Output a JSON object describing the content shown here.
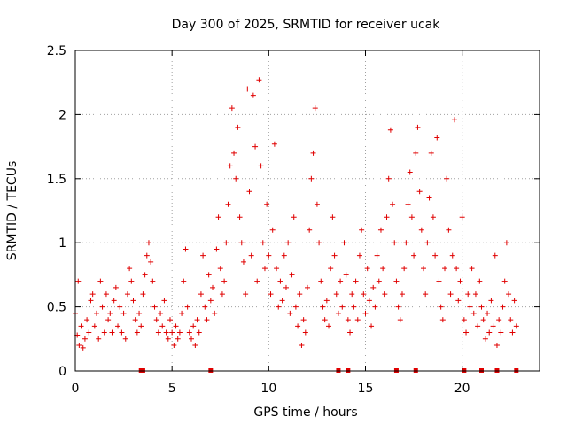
{
  "chart_data": {
    "type": "scatter",
    "title": "Day 300 of 2025, SRMTID for receiver ucak",
    "xlabel": "GPS time / hours",
    "ylabel": "SRMTID / TECUs",
    "xlim": [
      0,
      24
    ],
    "ylim": [
      0,
      2.5
    ],
    "xticks": [
      0,
      5,
      10,
      15,
      20
    ],
    "yticks": [
      0,
      0.5,
      1,
      1.5,
      2,
      2.5
    ],
    "xtick_labels": [
      "0",
      "5",
      "10",
      "15",
      "20"
    ],
    "ytick_labels": [
      "0",
      "0.5",
      "1",
      "1.5",
      "2",
      "2.5"
    ],
    "grid": true,
    "marker": "+",
    "color": "#e00000",
    "series": [
      {
        "name": "SRMTID",
        "points": [
          [
            0.0,
            0.45
          ],
          [
            0.1,
            0.28
          ],
          [
            0.15,
            0.7
          ],
          [
            0.2,
            0.2
          ],
          [
            0.3,
            0.35
          ],
          [
            0.4,
            0.18
          ],
          [
            0.5,
            0.25
          ],
          [
            0.6,
            0.4
          ],
          [
            0.7,
            0.3
          ],
          [
            0.8,
            0.55
          ],
          [
            0.9,
            0.6
          ],
          [
            1.0,
            0.35
          ],
          [
            1.1,
            0.45
          ],
          [
            1.2,
            0.25
          ],
          [
            1.3,
            0.7
          ],
          [
            1.4,
            0.5
          ],
          [
            1.5,
            0.3
          ],
          [
            1.6,
            0.6
          ],
          [
            1.7,
            0.4
          ],
          [
            1.8,
            0.45
          ],
          [
            1.9,
            0.3
          ],
          [
            2.0,
            0.55
          ],
          [
            2.1,
            0.65
          ],
          [
            2.2,
            0.35
          ],
          [
            2.3,
            0.5
          ],
          [
            2.4,
            0.3
          ],
          [
            2.5,
            0.45
          ],
          [
            2.6,
            0.25
          ],
          [
            2.7,
            0.6
          ],
          [
            2.8,
            0.8
          ],
          [
            2.9,
            0.7
          ],
          [
            3.0,
            0.55
          ],
          [
            3.1,
            0.4
          ],
          [
            3.2,
            0.3
          ],
          [
            3.3,
            0.45
          ],
          [
            3.4,
            0.35
          ],
          [
            3.5,
            0.6
          ],
          [
            3.6,
            0.75
          ],
          [
            3.7,
            0.9
          ],
          [
            3.8,
            1.0
          ],
          [
            3.9,
            0.85
          ],
          [
            4.0,
            0.7
          ],
          [
            4.1,
            0.5
          ],
          [
            4.2,
            0.4
          ],
          [
            4.3,
            0.3
          ],
          [
            4.4,
            0.45
          ],
          [
            4.5,
            0.35
          ],
          [
            4.6,
            0.55
          ],
          [
            4.7,
            0.3
          ],
          [
            4.8,
            0.25
          ],
          [
            4.9,
            0.4
          ],
          [
            5.0,
            0.3
          ],
          [
            5.1,
            0.2
          ],
          [
            5.2,
            0.35
          ],
          [
            5.3,
            0.25
          ],
          [
            5.4,
            0.3
          ],
          [
            5.5,
            0.45
          ],
          [
            5.6,
            0.7
          ],
          [
            5.7,
            0.95
          ],
          [
            5.8,
            0.5
          ],
          [
            5.9,
            0.3
          ],
          [
            6.0,
            0.25
          ],
          [
            6.1,
            0.35
          ],
          [
            6.2,
            0.2
          ],
          [
            6.3,
            0.4
          ],
          [
            6.4,
            0.3
          ],
          [
            6.5,
            0.6
          ],
          [
            6.6,
            0.9
          ],
          [
            6.7,
            0.5
          ],
          [
            6.8,
            0.4
          ],
          [
            6.9,
            0.75
          ],
          [
            7.0,
            0.55
          ],
          [
            7.1,
            0.65
          ],
          [
            7.2,
            0.45
          ],
          [
            7.3,
            0.95
          ],
          [
            7.4,
            1.2
          ],
          [
            7.5,
            0.8
          ],
          [
            7.6,
            0.6
          ],
          [
            7.7,
            0.7
          ],
          [
            7.8,
            1.0
          ],
          [
            7.9,
            1.3
          ],
          [
            8.0,
            1.6
          ],
          [
            8.1,
            2.05
          ],
          [
            8.2,
            1.7
          ],
          [
            8.3,
            1.5
          ],
          [
            8.4,
            1.9
          ],
          [
            8.5,
            1.2
          ],
          [
            8.6,
            1.0
          ],
          [
            8.7,
            0.85
          ],
          [
            8.8,
            0.6
          ],
          [
            8.9,
            2.2
          ],
          [
            9.0,
            1.4
          ],
          [
            9.1,
            0.9
          ],
          [
            9.2,
            2.15
          ],
          [
            9.3,
            1.75
          ],
          [
            9.4,
            0.7
          ],
          [
            9.5,
            2.27
          ],
          [
            9.6,
            1.6
          ],
          [
            9.7,
            1.0
          ],
          [
            9.8,
            0.8
          ],
          [
            9.9,
            1.3
          ],
          [
            10.0,
            0.9
          ],
          [
            10.1,
            0.6
          ],
          [
            10.2,
            1.1
          ],
          [
            10.3,
            1.77
          ],
          [
            10.4,
            0.8
          ],
          [
            10.5,
            0.5
          ],
          [
            10.6,
            0.7
          ],
          [
            10.7,
            0.55
          ],
          [
            10.8,
            0.9
          ],
          [
            10.9,
            0.65
          ],
          [
            11.0,
            1.0
          ],
          [
            11.1,
            0.45
          ],
          [
            11.2,
            0.75
          ],
          [
            11.3,
            1.2
          ],
          [
            11.4,
            0.5
          ],
          [
            11.5,
            0.35
          ],
          [
            11.6,
            0.6
          ],
          [
            11.7,
            0.2
          ],
          [
            11.8,
            0.4
          ],
          [
            11.9,
            0.3
          ],
          [
            12.0,
            0.65
          ],
          [
            12.1,
            1.1
          ],
          [
            12.2,
            1.5
          ],
          [
            12.3,
            1.7
          ],
          [
            12.4,
            2.05
          ],
          [
            12.5,
            1.3
          ],
          [
            12.6,
            1.0
          ],
          [
            12.7,
            0.7
          ],
          [
            12.8,
            0.5
          ],
          [
            12.9,
            0.4
          ],
          [
            13.0,
            0.55
          ],
          [
            13.1,
            0.35
          ],
          [
            13.2,
            0.8
          ],
          [
            13.3,
            1.2
          ],
          [
            13.4,
            0.9
          ],
          [
            13.5,
            0.6
          ],
          [
            13.6,
            0.45
          ],
          [
            13.7,
            0.7
          ],
          [
            13.8,
            0.5
          ],
          [
            13.9,
            1.0
          ],
          [
            14.0,
            0.75
          ],
          [
            14.1,
            0.4
          ],
          [
            14.2,
            0.3
          ],
          [
            14.3,
            0.6
          ],
          [
            14.4,
            0.5
          ],
          [
            14.5,
            0.7
          ],
          [
            14.6,
            0.4
          ],
          [
            14.7,
            0.9
          ],
          [
            14.8,
            1.1
          ],
          [
            14.9,
            0.6
          ],
          [
            15.0,
            0.45
          ],
          [
            15.1,
            0.8
          ],
          [
            15.2,
            0.55
          ],
          [
            15.3,
            0.35
          ],
          [
            15.4,
            0.65
          ],
          [
            15.5,
            0.5
          ],
          [
            15.6,
            0.9
          ],
          [
            15.7,
            0.7
          ],
          [
            15.8,
            1.1
          ],
          [
            15.9,
            0.8
          ],
          [
            16.0,
            0.6
          ],
          [
            16.1,
            1.2
          ],
          [
            16.2,
            1.5
          ],
          [
            16.3,
            1.88
          ],
          [
            16.4,
            1.3
          ],
          [
            16.5,
            1.0
          ],
          [
            16.6,
            0.7
          ],
          [
            16.7,
            0.5
          ],
          [
            16.8,
            0.4
          ],
          [
            16.9,
            0.6
          ],
          [
            17.0,
            0.8
          ],
          [
            17.1,
            1.0
          ],
          [
            17.2,
            1.3
          ],
          [
            17.3,
            1.55
          ],
          [
            17.4,
            1.2
          ],
          [
            17.5,
            0.9
          ],
          [
            17.6,
            1.7
          ],
          [
            17.7,
            1.9
          ],
          [
            17.8,
            1.4
          ],
          [
            17.9,
            1.1
          ],
          [
            18.0,
            0.8
          ],
          [
            18.1,
            0.6
          ],
          [
            18.2,
            1.0
          ],
          [
            18.3,
            1.35
          ],
          [
            18.4,
            1.7
          ],
          [
            18.5,
            1.2
          ],
          [
            18.6,
            0.9
          ],
          [
            18.7,
            1.82
          ],
          [
            18.8,
            0.7
          ],
          [
            18.9,
            0.5
          ],
          [
            19.0,
            0.4
          ],
          [
            19.1,
            0.8
          ],
          [
            19.2,
            1.5
          ],
          [
            19.3,
            1.1
          ],
          [
            19.4,
            0.6
          ],
          [
            19.5,
            0.9
          ],
          [
            19.6,
            1.96
          ],
          [
            19.7,
            0.8
          ],
          [
            19.8,
            0.55
          ],
          [
            19.9,
            0.7
          ],
          [
            20.0,
            1.2
          ],
          [
            20.1,
            0.4
          ],
          [
            20.2,
            0.3
          ],
          [
            20.3,
            0.6
          ],
          [
            20.4,
            0.5
          ],
          [
            20.5,
            0.8
          ],
          [
            20.6,
            0.45
          ],
          [
            20.7,
            0.6
          ],
          [
            20.8,
            0.35
          ],
          [
            20.9,
            0.7
          ],
          [
            21.0,
            0.5
          ],
          [
            21.1,
            0.4
          ],
          [
            21.2,
            0.25
          ],
          [
            21.3,
            0.45
          ],
          [
            21.4,
            0.3
          ],
          [
            21.5,
            0.55
          ],
          [
            21.6,
            0.35
          ],
          [
            21.7,
            0.9
          ],
          [
            21.8,
            0.2
          ],
          [
            21.9,
            0.4
          ],
          [
            22.0,
            0.3
          ],
          [
            22.1,
            0.5
          ],
          [
            22.2,
            0.7
          ],
          [
            22.3,
            1.0
          ],
          [
            22.4,
            0.6
          ],
          [
            22.5,
            0.4
          ],
          [
            22.6,
            0.3
          ],
          [
            22.7,
            0.55
          ],
          [
            22.8,
            0.35
          ]
        ]
      }
    ],
    "gap_markers_x": [
      3.4,
      3.5,
      7.0,
      13.6,
      14.1,
      16.6,
      17.6,
      20.1,
      21.0,
      21.8,
      22.8
    ]
  }
}
